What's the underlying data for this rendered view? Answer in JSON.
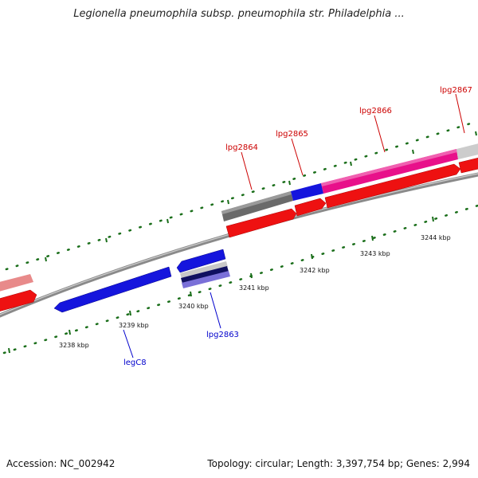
{
  "title": "Legionella pneumophila subsp. pneumophila str. Philadelphia ...",
  "footer": {
    "accession": "Accession: NC_002942",
    "topology": "Topology: circular; Length: 3,397,754 bp; Genes: 2,994"
  },
  "kbp_labels": [
    "3238 kbp",
    "3239 kbp",
    "3240 kbp",
    "3241 kbp",
    "3242 kbp",
    "3243 kbp",
    "3244 kbp"
  ],
  "gene_labels": {
    "lpg2864": "lpg2864",
    "lpg2865": "lpg2865",
    "lpg2866": "lpg2866",
    "lpg2867": "lpg2867",
    "lpg2863": "lpg2863",
    "legC8": "legC8"
  },
  "colors": {
    "forward_label": "#cc0000",
    "reverse_label": "#0000cc",
    "tick": "#1a6e1a",
    "backbone": "#808080"
  }
}
